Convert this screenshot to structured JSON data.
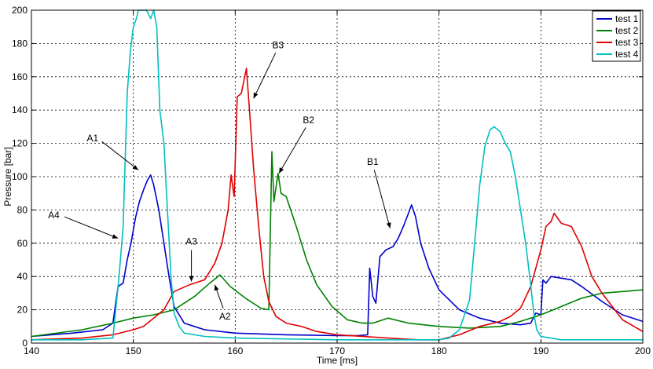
{
  "chart_data": {
    "type": "line",
    "title": "",
    "xlabel": "Time [ms]",
    "ylabel": "Pressure [bar]",
    "xlim": [
      140,
      200
    ],
    "ylim": [
      0,
      200
    ],
    "xticks": [
      140,
      150,
      160,
      170,
      180,
      190,
      200
    ],
    "yticks": [
      0,
      20,
      40,
      60,
      80,
      100,
      120,
      140,
      160,
      180,
      200
    ],
    "grid": true,
    "legend": "top-right",
    "series": [
      {
        "name": "test 1",
        "color": "#0000cc",
        "x": [
          140,
          144,
          147,
          148,
          148.5,
          149,
          149.4,
          149.8,
          150.2,
          150.6,
          151,
          151.4,
          151.7,
          152,
          152.5,
          153,
          153.5,
          154,
          155,
          157,
          160,
          165,
          170,
          172,
          173,
          173.2,
          173.5,
          173.8,
          174.2,
          174.8,
          175.5,
          176,
          176.5,
          177,
          177.3,
          177.7,
          178.2,
          179,
          180,
          182,
          184,
          186,
          188,
          189,
          189.5,
          190,
          190.2,
          190.5,
          191,
          192,
          193,
          194,
          196,
          198,
          200
        ],
        "y": [
          4,
          6,
          8,
          12,
          34,
          36,
          50,
          61,
          75,
          85,
          92,
          98,
          101,
          95,
          80,
          60,
          40,
          22,
          12,
          8,
          6,
          5,
          4.5,
          4.5,
          5,
          45,
          28,
          24,
          52,
          56,
          58,
          63,
          70,
          78,
          83,
          76,
          60,
          45,
          32,
          20,
          15,
          12,
          11,
          12,
          18,
          17,
          38,
          36,
          40,
          39,
          38,
          34,
          25,
          17,
          13
        ]
      },
      {
        "name": "test 2",
        "color": "#008000",
        "x": [
          140,
          145,
          148,
          150,
          152,
          154,
          156,
          157.5,
          158.5,
          159.5,
          161,
          162.5,
          163.3,
          163.6,
          163.8,
          164.2,
          164.5,
          165,
          166,
          167,
          168,
          169.5,
          171,
          172.5,
          173.5,
          175,
          177,
          180,
          183,
          186,
          188,
          190,
          192,
          194,
          196,
          198,
          200
        ],
        "y": [
          4,
          8,
          12,
          15,
          17,
          20,
          28,
          36,
          41,
          34,
          27,
          21,
          20,
          115,
          85,
          102,
          90,
          88,
          70,
          50,
          35,
          22,
          14,
          12,
          12,
          15,
          12,
          10,
          9,
          10,
          13,
          17,
          22,
          27,
          30,
          31,
          32
        ]
      },
      {
        "name": "test 3",
        "color": "#e00000",
        "x": [
          140,
          145,
          148,
          150,
          151,
          153,
          154,
          155.5,
          157,
          158,
          158.7,
          159.3,
          159.6,
          159.9,
          160.2,
          160.6,
          161.1,
          161.4,
          161.8,
          162.3,
          162.8,
          163.3,
          164,
          165,
          166.5,
          168,
          170,
          175,
          178,
          180,
          182,
          184,
          186,
          187,
          188,
          189,
          190,
          190.5,
          191,
          191.3,
          192,
          193,
          194,
          195,
          196,
          197,
          198,
          200
        ],
        "y": [
          2,
          3,
          5,
          8,
          10,
          20,
          31,
          35,
          38,
          48,
          60,
          80,
          101,
          88,
          148,
          150,
          165,
          140,
          105,
          70,
          40,
          25,
          16,
          12,
          10,
          7,
          5,
          3,
          2,
          2,
          5,
          10,
          13,
          16,
          21,
          34,
          56,
          70,
          73,
          78,
          72,
          70,
          58,
          40,
          30,
          22,
          14,
          7
        ]
      },
      {
        "name": "test 4",
        "color": "#00bfbf",
        "x": [
          140,
          145,
          148,
          148.6,
          149,
          149.4,
          149.7,
          150,
          150.3,
          150.5,
          150.7,
          151,
          151.3,
          151.7,
          152,
          152.3,
          152.6,
          153,
          153.3,
          153.7,
          154,
          154.5,
          155,
          157,
          160,
          170,
          180,
          181,
          182,
          183,
          183.5,
          184,
          184.5,
          185,
          185.4,
          186,
          186.5,
          187,
          187.5,
          188,
          188.5,
          189,
          189.3,
          189.6,
          190,
          192,
          196,
          200
        ],
        "y": [
          2,
          2,
          3,
          40,
          70,
          150,
          175,
          190,
          195,
          200,
          200,
          200,
          200,
          195,
          200,
          190,
          140,
          120,
          85,
          40,
          18,
          10,
          6,
          4,
          3,
          2,
          2,
          3,
          8,
          26,
          60,
          95,
          118,
          128,
          130,
          127,
          120,
          115,
          100,
          80,
          60,
          35,
          18,
          8,
          4,
          2,
          2,
          2
        ]
      }
    ],
    "annotations": [
      {
        "text": "A1",
        "x": 146,
        "y": 123,
        "ax": 150.5,
        "ay": 104
      },
      {
        "text": "A2",
        "x": 159,
        "y": 16,
        "ax": 158,
        "ay": 35
      },
      {
        "text": "A3",
        "x": 155.7,
        "y": 61,
        "ax": 155.7,
        "ay": 37
      },
      {
        "text": "A4",
        "x": 142.2,
        "y": 77,
        "ax": 148.5,
        "ay": 63
      },
      {
        "text": "B1",
        "x": 173.5,
        "y": 109,
        "ax": 175.2,
        "ay": 69
      },
      {
        "text": "B2",
        "x": 167.2,
        "y": 134,
        "ax": 164.3,
        "ay": 102
      },
      {
        "text": "B3",
        "x": 164.2,
        "y": 179,
        "ax": 161.8,
        "ay": 147
      }
    ]
  }
}
